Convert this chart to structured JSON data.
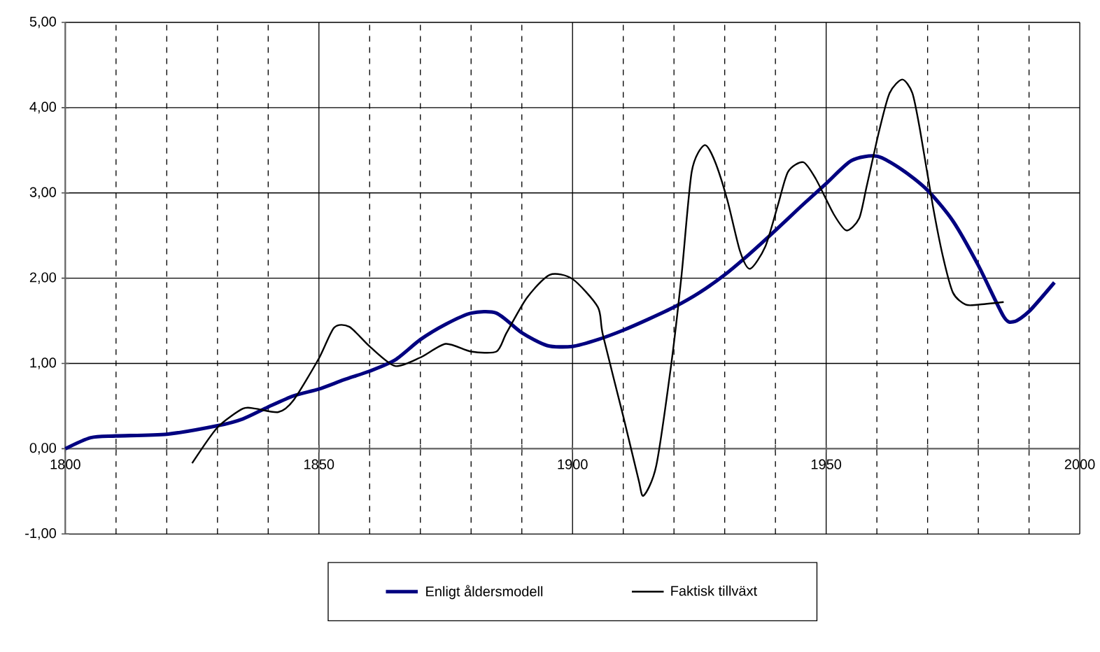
{
  "chart_data": {
    "type": "line",
    "xlim": [
      1800,
      2000
    ],
    "ylim": [
      -1,
      5
    ],
    "xticks": [
      1800,
      {
        "value": 1810,
        "label": null
      },
      {
        "value": 1820,
        "label": null
      },
      {
        "value": 1830,
        "label": null
      },
      {
        "value": 1840,
        "label": null
      },
      1850,
      {
        "value": 1860,
        "label": null
      },
      {
        "value": 1870,
        "label": null
      },
      {
        "value": 1880,
        "label": null
      },
      {
        "value": 1890,
        "label": null
      },
      1900,
      {
        "value": 1910,
        "label": null
      },
      {
        "value": 1920,
        "label": null
      },
      {
        "value": 1930,
        "label": null
      },
      {
        "value": 1940,
        "label": null
      },
      1950,
      {
        "value": 1960,
        "label": null
      },
      {
        "value": 1970,
        "label": null
      },
      {
        "value": 1980,
        "label": null
      },
      {
        "value": 1990,
        "label": null
      },
      2000
    ],
    "yticks": [
      {
        "value": -1,
        "label": "-1,00"
      },
      {
        "value": 0,
        "label": "0,00"
      },
      {
        "value": 1,
        "label": "1,00"
      },
      {
        "value": 2,
        "label": "2,00"
      },
      {
        "value": 3,
        "label": "3,00"
      },
      {
        "value": 4,
        "label": "4,00"
      },
      {
        "value": 5,
        "label": "5,00"
      }
    ],
    "grid": true,
    "legend": "bottom",
    "marker": "none",
    "line_style": "solid",
    "series": [
      {
        "name": "Enligt åldersmodell",
        "color": "#000080",
        "x": [
          1800,
          1805,
          1810,
          1820,
          1830,
          1835,
          1840,
          1845,
          1850,
          1855,
          1860,
          1865,
          1870,
          1875,
          1880,
          1885,
          1890,
          1895,
          1900,
          1905,
          1910,
          1915,
          1920,
          1925,
          1930,
          1935,
          1940,
          1945,
          1950,
          1955,
          1960,
          1965,
          1970,
          1975,
          1980,
          1985,
          1987,
          1990,
          1995
        ],
        "values": [
          0,
          0.13,
          0.15,
          0.17,
          0.27,
          0.35,
          0.49,
          0.62,
          0.7,
          0.81,
          0.91,
          1.04,
          1.28,
          1.46,
          1.59,
          1.59,
          1.36,
          1.21,
          1.2,
          1.28,
          1.39,
          1.52,
          1.66,
          1.83,
          2.04,
          2.29,
          2.56,
          2.84,
          3.11,
          3.38,
          3.43,
          3.27,
          3.03,
          2.67,
          2.15,
          1.55,
          1.49,
          1.61,
          1.95
        ]
      },
      {
        "name": "Faktisk tillväxt",
        "color": "#000000",
        "x": [
          1825,
          1830,
          1835,
          1837.5,
          1842,
          1845,
          1850,
          1853,
          1856,
          1860,
          1865,
          1870,
          1875,
          1880,
          1885,
          1887,
          1891,
          1895.5,
          1900,
          1905,
          1906,
          1910,
          1913,
          1914,
          1916.5,
          1919.5,
          1921.5,
          1923.5,
          1926,
          1928,
          1930.5,
          1933,
          1935,
          1938,
          1940.5,
          1942.5,
          1945.5,
          1948,
          1951.5,
          1954,
          1956.5,
          1958,
          1960.5,
          1962.5,
          1965,
          1967,
          1968.5,
          1971,
          1973,
          1975,
          1977.5,
          1980,
          1985
        ],
        "values": [
          -0.17,
          0.25,
          0.47,
          0.47,
          0.43,
          0.57,
          1.06,
          1.42,
          1.43,
          1.2,
          0.97,
          1.07,
          1.23,
          1.14,
          1.14,
          1.36,
          1.77,
          2.04,
          1.99,
          1.66,
          1.33,
          0.38,
          -0.36,
          -0.55,
          -0.2,
          1.01,
          2.04,
          3.25,
          3.56,
          3.38,
          2.92,
          2.32,
          2.11,
          2.37,
          2.86,
          3.25,
          3.36,
          3.16,
          2.75,
          2.56,
          2.7,
          3.08,
          3.74,
          4.17,
          4.33,
          4.17,
          3.74,
          2.86,
          2.26,
          1.83,
          1.69,
          1.69,
          1.72
        ]
      }
    ]
  }
}
